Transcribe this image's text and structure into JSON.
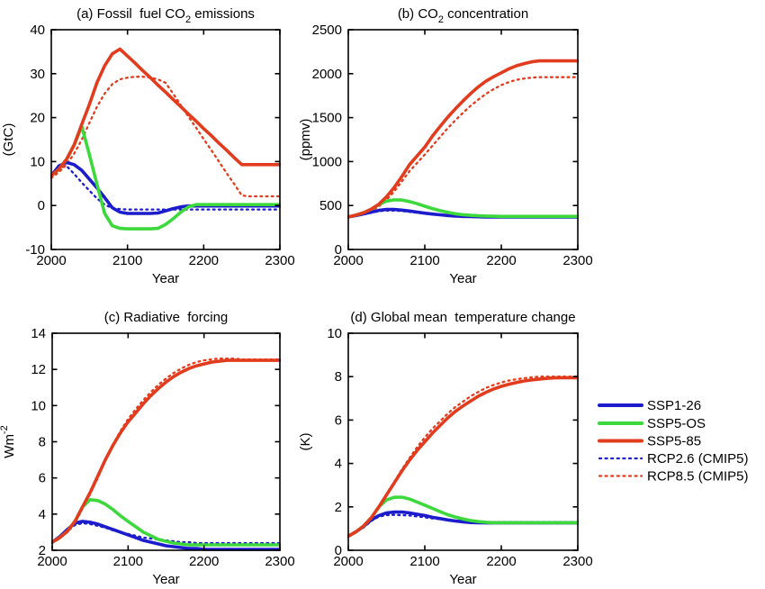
{
  "figure": {
    "background": "#ffffff",
    "axis_color": "#000000",
    "colors": {
      "ssp1_26": "#1c1ccd",
      "ssp5_os": "#3cd83c",
      "ssp5_85": "#e23c1e"
    },
    "legend": {
      "entries": [
        {
          "label": "SSP1-26",
          "color": "#1c1ccd",
          "style": "solid"
        },
        {
          "label": "SSP5-OS",
          "color": "#3cd83c",
          "style": "solid"
        },
        {
          "label": "SSP5-85",
          "color": "#e23c1e",
          "style": "solid"
        },
        {
          "label": "RCP2.6 (CMIP5)",
          "color": "#1c1ccd",
          "style": "dotted"
        },
        {
          "label": "RCP8.5 (CMIP5)",
          "color": "#e23c1e",
          "style": "dotted"
        }
      ]
    }
  },
  "chart_data": [
    {
      "id": "a",
      "type": "line",
      "title_parts": [
        {
          "t": "(a) Fossil  fuel CO"
        },
        {
          "t": "2",
          "sub": true
        },
        {
          "t": " emissions"
        }
      ],
      "ylabel_parts": [
        {
          "t": "(GtC)"
        }
      ],
      "xlabel": "Year",
      "xlim": [
        2000,
        2300
      ],
      "ylim": [
        -10,
        40
      ],
      "xticks": [
        2000,
        2100,
        2200,
        2300
      ],
      "yticks": [
        -10,
        0,
        10,
        20,
        30,
        40
      ],
      "grid": false,
      "x": [
        2000,
        2010,
        2020,
        2030,
        2040,
        2050,
        2060,
        2070,
        2080,
        2090,
        2100,
        2110,
        2120,
        2130,
        2140,
        2150,
        2160,
        2170,
        2180,
        2190,
        2200,
        2210,
        2220,
        2230,
        2240,
        2250,
        2260,
        2270,
        2280,
        2290,
        2300
      ],
      "series": [
        {
          "name": "SSP1-26",
          "color": "#1c1ccd",
          "style": "solid",
          "values": [
            6.8,
            9.0,
            9.8,
            9.3,
            8.0,
            6.0,
            4.0,
            1.8,
            -0.5,
            -1.5,
            -1.8,
            -1.8,
            -1.8,
            -1.8,
            -1.7,
            -1.2,
            -0.7,
            -0.3,
            -0.1,
            -0.1,
            -0.1,
            -0.1,
            -0.1,
            -0.1,
            -0.1,
            -0.1,
            -0.1,
            -0.1,
            -0.1,
            -0.1,
            -0.1
          ]
        },
        {
          "name": "SSP5-OS",
          "color": "#3cd83c",
          "style": "solid",
          "values": [
            6.8,
            8.3,
            10.5,
            13.8,
            18.0,
            11.6,
            4.8,
            -1.8,
            -4.6,
            -5.2,
            -5.3,
            -5.3,
            -5.3,
            -5.3,
            -5.2,
            -4.3,
            -3.0,
            -1.5,
            -0.3,
            0.2,
            0.2,
            0.2,
            0.2,
            0.2,
            0.2,
            0.2,
            0.2,
            0.2,
            0.2,
            0.2,
            0.2
          ]
        },
        {
          "name": "SSP5-85",
          "color": "#e23c1e",
          "style": "solid",
          "values": [
            6.8,
            8.3,
            10.5,
            13.8,
            18.5,
            23.0,
            28.0,
            31.8,
            34.5,
            35.6,
            34.0,
            32.4,
            30.7,
            29.1,
            27.4,
            25.8,
            24.1,
            22.5,
            20.8,
            19.2,
            17.5,
            15.9,
            14.2,
            12.6,
            10.9,
            9.3,
            9.3,
            9.3,
            9.3,
            9.3,
            9.3
          ]
        },
        {
          "name": "RCP2.6 (CMIP5)",
          "color": "#1c1ccd",
          "style": "dotted",
          "values": [
            6.3,
            8.6,
            9.0,
            7.2,
            5.2,
            3.4,
            1.6,
            0.2,
            -0.6,
            -0.8,
            -0.9,
            -0.9,
            -0.9,
            -0.9,
            -0.9,
            -0.9,
            -0.9,
            -0.9,
            -0.9,
            -0.9,
            -0.9,
            -0.9,
            -0.9,
            -0.9,
            -0.9,
            -0.9,
            -0.9,
            -0.9,
            -0.9,
            -0.9,
            -0.9
          ]
        },
        {
          "name": "RCP8.5 (CMIP5)",
          "color": "#e23c1e",
          "style": "dotted",
          "values": [
            6.3,
            7.6,
            9.3,
            11.8,
            15.0,
            18.8,
            22.5,
            25.5,
            27.6,
            28.7,
            29.1,
            29.3,
            29.3,
            29.1,
            28.7,
            27.9,
            25.4,
            22.8,
            20.2,
            17.7,
            15.1,
            12.6,
            10.0,
            7.4,
            4.9,
            2.3,
            2.1,
            2.1,
            2.1,
            2.1,
            2.1
          ]
        }
      ]
    },
    {
      "id": "b",
      "type": "line",
      "title_parts": [
        {
          "t": "(b) CO"
        },
        {
          "t": "2",
          "sub": true
        },
        {
          "t": " concentration"
        }
      ],
      "ylabel_parts": [
        {
          "t": "(ppmv)"
        }
      ],
      "xlabel": "Year",
      "xlim": [
        2000,
        2300
      ],
      "ylim": [
        0,
        2500
      ],
      "xticks": [
        2000,
        2100,
        2200,
        2300
      ],
      "yticks": [
        0,
        500,
        1000,
        1500,
        2000,
        2500
      ],
      "grid": false,
      "x": [
        2000,
        2010,
        2020,
        2030,
        2040,
        2050,
        2060,
        2070,
        2080,
        2090,
        2100,
        2110,
        2120,
        2130,
        2140,
        2150,
        2160,
        2170,
        2180,
        2190,
        2200,
        2210,
        2220,
        2230,
        2240,
        2250,
        2260,
        2270,
        2280,
        2290,
        2300
      ],
      "series": [
        {
          "name": "SSP1-26",
          "color": "#1c1ccd",
          "style": "solid",
          "values": [
            370,
            385,
            405,
            425,
            445,
            455,
            455,
            448,
            438,
            425,
            413,
            403,
            394,
            386,
            380,
            376,
            374,
            372,
            370,
            370,
            370,
            370,
            370,
            370,
            370,
            370,
            370,
            370,
            370,
            370,
            370
          ]
        },
        {
          "name": "SSP5-OS",
          "color": "#3cd83c",
          "style": "solid",
          "values": [
            370,
            390,
            418,
            458,
            512,
            550,
            565,
            562,
            545,
            520,
            492,
            465,
            442,
            422,
            406,
            395,
            388,
            383,
            380,
            378,
            376,
            376,
            376,
            376,
            376,
            376,
            376,
            376,
            376,
            376,
            376
          ]
        },
        {
          "name": "SSP5-85",
          "color": "#e23c1e",
          "style": "solid",
          "values": [
            370,
            390,
            418,
            458,
            515,
            600,
            705,
            830,
            965,
            1065,
            1165,
            1290,
            1400,
            1505,
            1600,
            1690,
            1775,
            1850,
            1915,
            1965,
            2010,
            2055,
            2090,
            2115,
            2135,
            2145,
            2145,
            2145,
            2145,
            2145,
            2145
          ]
        },
        {
          "name": "RCP2.6 (CMIP5)",
          "color": "#1c1ccd",
          "style": "dotted",
          "values": [
            368,
            382,
            400,
            418,
            435,
            443,
            443,
            437,
            428,
            418,
            408,
            399,
            391,
            384,
            379,
            375,
            372,
            370,
            370,
            370,
            370,
            370,
            370,
            370,
            370,
            370,
            370,
            370,
            370,
            370,
            370
          ]
        },
        {
          "name": "RCP8.5 (CMIP5)",
          "color": "#e23c1e",
          "style": "dotted",
          "values": [
            368,
            385,
            408,
            443,
            490,
            565,
            660,
            775,
            890,
            985,
            1080,
            1180,
            1280,
            1380,
            1470,
            1555,
            1635,
            1705,
            1770,
            1825,
            1870,
            1905,
            1930,
            1945,
            1955,
            1960,
            1960,
            1960,
            1960,
            1960,
            1960
          ]
        }
      ]
    },
    {
      "id": "c",
      "type": "line",
      "title_parts": [
        {
          "t": "(c) Radiative  forcing"
        }
      ],
      "ylabel_parts": [
        {
          "t": "Wm"
        },
        {
          "t": "-2",
          "sup": true
        }
      ],
      "xlabel": "Year",
      "xlim": [
        2000,
        2300
      ],
      "ylim": [
        2,
        14
      ],
      "xticks": [
        2000,
        2100,
        2200,
        2300
      ],
      "yticks": [
        2,
        4,
        6,
        8,
        10,
        12,
        14
      ],
      "grid": false,
      "x": [
        2000,
        2010,
        2020,
        2030,
        2040,
        2050,
        2060,
        2070,
        2080,
        2090,
        2100,
        2110,
        2120,
        2130,
        2140,
        2150,
        2160,
        2170,
        2180,
        2190,
        2200,
        2210,
        2220,
        2230,
        2240,
        2250,
        2260,
        2270,
        2280,
        2290,
        2300
      ],
      "series": [
        {
          "name": "SSP1-26",
          "color": "#1c1ccd",
          "style": "solid",
          "values": [
            2.45,
            2.75,
            3.15,
            3.5,
            3.6,
            3.55,
            3.45,
            3.3,
            3.15,
            3.0,
            2.85,
            2.7,
            2.55,
            2.45,
            2.35,
            2.25,
            2.2,
            2.15,
            2.1,
            2.1,
            2.05,
            2.05,
            2.05,
            2.05,
            2.05,
            2.05,
            2.05,
            2.05,
            2.05,
            2.05,
            2.05
          ]
        },
        {
          "name": "SSP5-OS",
          "color": "#3cd83c",
          "style": "solid",
          "values": [
            2.45,
            2.7,
            3.05,
            3.6,
            4.4,
            4.8,
            4.75,
            4.55,
            4.25,
            3.9,
            3.6,
            3.3,
            3.0,
            2.8,
            2.6,
            2.5,
            2.4,
            2.35,
            2.3,
            2.3,
            2.3,
            2.3,
            2.3,
            2.3,
            2.3,
            2.3,
            2.3,
            2.3,
            2.3,
            2.3,
            2.3
          ]
        },
        {
          "name": "SSP5-85",
          "color": "#e23c1e",
          "style": "solid",
          "values": [
            2.45,
            2.7,
            3.05,
            3.6,
            4.4,
            5.2,
            6.1,
            7.0,
            7.8,
            8.5,
            9.1,
            9.6,
            10.1,
            10.55,
            10.95,
            11.3,
            11.6,
            11.85,
            12.05,
            12.2,
            12.3,
            12.4,
            12.45,
            12.5,
            12.5,
            12.5,
            12.5,
            12.5,
            12.5,
            12.5,
            12.5
          ]
        },
        {
          "name": "RCP2.6 (CMIP5)",
          "color": "#1c1ccd",
          "style": "dotted",
          "values": [
            2.4,
            2.7,
            3.05,
            3.4,
            3.5,
            3.45,
            3.35,
            3.25,
            3.1,
            3.0,
            2.9,
            2.8,
            2.7,
            2.65,
            2.6,
            2.55,
            2.5,
            2.45,
            2.45,
            2.4,
            2.4,
            2.4,
            2.4,
            2.4,
            2.4,
            2.4,
            2.4,
            2.4,
            2.4,
            2.4,
            2.4
          ]
        },
        {
          "name": "RCP8.5 (CMIP5)",
          "color": "#e23c1e",
          "style": "dotted",
          "values": [
            2.4,
            2.65,
            3.0,
            3.5,
            4.3,
            5.1,
            6.0,
            6.95,
            7.85,
            8.6,
            9.25,
            9.8,
            10.3,
            10.75,
            11.15,
            11.5,
            11.8,
            12.05,
            12.25,
            12.4,
            12.5,
            12.55,
            12.6,
            12.6,
            12.6,
            12.55,
            12.55,
            12.55,
            12.55,
            12.55,
            12.55
          ]
        }
      ]
    },
    {
      "id": "d",
      "type": "line",
      "title_parts": [
        {
          "t": "(d) Global mean  temperature change"
        }
      ],
      "ylabel_parts": [
        {
          "t": "(K)"
        }
      ],
      "xlabel": "Year",
      "xlim": [
        2000,
        2300
      ],
      "ylim": [
        0,
        10
      ],
      "xticks": [
        2000,
        2100,
        2200,
        2300
      ],
      "yticks": [
        0,
        2,
        4,
        6,
        8,
        10
      ],
      "grid": false,
      "x": [
        2000,
        2010,
        2020,
        2030,
        2040,
        2050,
        2060,
        2070,
        2080,
        2090,
        2100,
        2110,
        2120,
        2130,
        2140,
        2150,
        2160,
        2170,
        2180,
        2190,
        2200,
        2210,
        2220,
        2230,
        2240,
        2250,
        2260,
        2270,
        2280,
        2290,
        2300
      ],
      "series": [
        {
          "name": "SSP1-26",
          "color": "#1c1ccd",
          "style": "solid",
          "values": [
            0.65,
            0.85,
            1.1,
            1.4,
            1.6,
            1.72,
            1.76,
            1.76,
            1.72,
            1.66,
            1.6,
            1.52,
            1.46,
            1.4,
            1.35,
            1.31,
            1.28,
            1.27,
            1.26,
            1.26,
            1.26,
            1.26,
            1.26,
            1.26,
            1.26,
            1.26,
            1.26,
            1.26,
            1.26,
            1.26,
            1.26
          ]
        },
        {
          "name": "SSP5-OS",
          "color": "#3cd83c",
          "style": "solid",
          "values": [
            0.65,
            0.85,
            1.12,
            1.5,
            2.0,
            2.32,
            2.44,
            2.45,
            2.36,
            2.22,
            2.08,
            1.93,
            1.78,
            1.64,
            1.53,
            1.44,
            1.37,
            1.32,
            1.29,
            1.27,
            1.27,
            1.27,
            1.27,
            1.27,
            1.27,
            1.27,
            1.27,
            1.27,
            1.27,
            1.27,
            1.27
          ]
        },
        {
          "name": "SSP5-85",
          "color": "#e23c1e",
          "style": "solid",
          "values": [
            0.65,
            0.85,
            1.12,
            1.5,
            2.0,
            2.55,
            3.1,
            3.65,
            4.15,
            4.6,
            5.0,
            5.4,
            5.75,
            6.1,
            6.4,
            6.65,
            6.88,
            7.1,
            7.28,
            7.43,
            7.55,
            7.65,
            7.73,
            7.8,
            7.85,
            7.89,
            7.92,
            7.94,
            7.95,
            7.95,
            7.95
          ]
        },
        {
          "name": "RCP2.6 (CMIP5)",
          "color": "#1c1ccd",
          "style": "dotted",
          "values": [
            0.65,
            0.83,
            1.05,
            1.35,
            1.55,
            1.62,
            1.63,
            1.62,
            1.6,
            1.56,
            1.52,
            1.47,
            1.43,
            1.4,
            1.37,
            1.35,
            1.33,
            1.32,
            1.3,
            1.3,
            1.3,
            1.3,
            1.3,
            1.3,
            1.3,
            1.3,
            1.3,
            1.3,
            1.3,
            1.3,
            1.3
          ]
        },
        {
          "name": "RCP8.5 (CMIP5)",
          "color": "#e23c1e",
          "style": "dotted",
          "values": [
            0.65,
            0.85,
            1.12,
            1.52,
            2.05,
            2.6,
            3.15,
            3.72,
            4.25,
            4.75,
            5.2,
            5.6,
            5.95,
            6.3,
            6.6,
            6.85,
            7.1,
            7.3,
            7.48,
            7.62,
            7.73,
            7.82,
            7.88,
            7.93,
            7.97,
            8.0,
            8.0,
            8.0,
            8.0,
            8.0,
            8.0
          ]
        }
      ]
    }
  ]
}
